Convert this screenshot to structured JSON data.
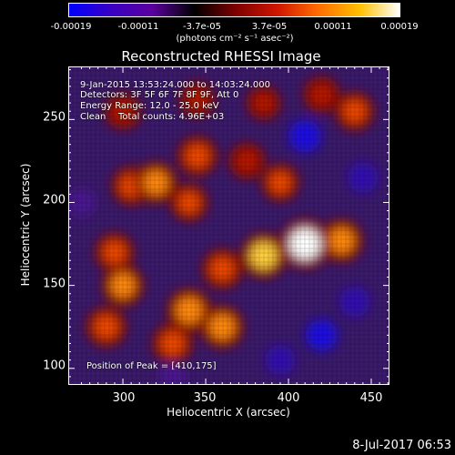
{
  "colorbar": {
    "ticks": [
      "-0.00019",
      "-0.00011",
      "-3.7e-05",
      "3.7e-05",
      "0.00011",
      "0.00019"
    ],
    "unit_label": "(photons cm⁻² s⁻¹ asec⁻²)",
    "colormap": [
      "#0000ff",
      "#3b00c0",
      "#5a00a0",
      "#000000",
      "#7a0000",
      "#d01500",
      "#ff6a00",
      "#ffc000",
      "#ffffff"
    ]
  },
  "chart_data": {
    "type": "heatmap",
    "title": "Reconstructed RHESSI Image",
    "xlabel": "Heliocentric X (arcsec)",
    "ylabel": "Heliocentric Y (arcsec)",
    "xlim": [
      267,
      461
    ],
    "ylim": [
      90,
      282
    ],
    "xticks": [
      "300",
      "350",
      "400",
      "450"
    ],
    "yticks": [
      "100",
      "150",
      "200",
      "250"
    ],
    "value_range": [
      -0.00019,
      0.00019
    ],
    "peak": [
      410,
      175
    ],
    "bright_regions": [
      {
        "x": 410,
        "y": 175,
        "level": 1.0
      },
      {
        "x": 385,
        "y": 168,
        "level": 0.8
      },
      {
        "x": 360,
        "y": 160,
        "level": 0.6
      },
      {
        "x": 432,
        "y": 177,
        "level": 0.7
      },
      {
        "x": 340,
        "y": 135,
        "level": 0.75
      },
      {
        "x": 360,
        "y": 125,
        "level": 0.7
      },
      {
        "x": 330,
        "y": 115,
        "level": 0.6
      },
      {
        "x": 300,
        "y": 150,
        "level": 0.65
      },
      {
        "x": 290,
        "y": 125,
        "level": 0.6
      },
      {
        "x": 295,
        "y": 170,
        "level": 0.55
      },
      {
        "x": 320,
        "y": 212,
        "level": 0.65
      },
      {
        "x": 305,
        "y": 210,
        "level": 0.55
      },
      {
        "x": 345,
        "y": 228,
        "level": 0.6
      },
      {
        "x": 375,
        "y": 225,
        "level": 0.45
      },
      {
        "x": 340,
        "y": 200,
        "level": 0.5
      },
      {
        "x": 395,
        "y": 212,
        "level": 0.5
      },
      {
        "x": 440,
        "y": 255,
        "level": 0.55
      },
      {
        "x": 420,
        "y": 265,
        "level": 0.45
      },
      {
        "x": 300,
        "y": 255,
        "level": 0.45
      },
      {
        "x": 345,
        "y": 262,
        "level": 0.4
      },
      {
        "x": 385,
        "y": 260,
        "level": 0.35
      }
    ],
    "dim_regions": [
      {
        "x": 410,
        "y": 240,
        "level": -0.6
      },
      {
        "x": 445,
        "y": 215,
        "level": -0.5
      },
      {
        "x": 420,
        "y": 120,
        "level": -0.55
      },
      {
        "x": 440,
        "y": 140,
        "level": -0.5
      },
      {
        "x": 395,
        "y": 105,
        "level": -0.45
      },
      {
        "x": 330,
        "y": 95,
        "level": -0.35
      },
      {
        "x": 275,
        "y": 200,
        "level": -0.35
      }
    ],
    "annotations": {
      "time_range": "9-Jan-2015 13:53:24.000 to 14:03:24.000",
      "detectors": "Detectors: 3F 5F 6F 7F 8F 9F, Att 0",
      "energy": "Energy Range: 12.0 - 25.0 keV",
      "method": "Clean",
      "counts": "Total counts: 4.96E+03",
      "peak_label": "Position of Peak = [410,175]"
    }
  },
  "footer": {
    "date": "8-Jul-2017 06:53"
  }
}
